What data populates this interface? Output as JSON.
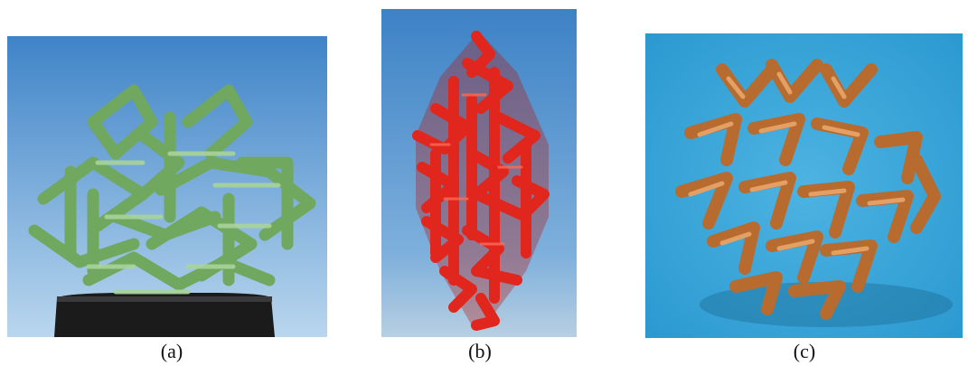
{
  "figure": {
    "panels": [
      {
        "caption": "(a)",
        "subject": "green-lattice-sculpture"
      },
      {
        "caption": "(b)",
        "subject": "red-lattice-sculpture"
      },
      {
        "caption": "(c)",
        "subject": "copper-lattice-sculpture"
      }
    ]
  },
  "colors": {
    "sky_top": "#3f84c8",
    "sky_bottom": "#a9cbe6",
    "green": "#7fb56f",
    "green_light": "#a9d49a",
    "red": "#e0261d",
    "red_dark": "#9e130e",
    "copper": "#c97b3c",
    "copper_light": "#e9a56a",
    "blue_bg": "#33a4d8"
  }
}
